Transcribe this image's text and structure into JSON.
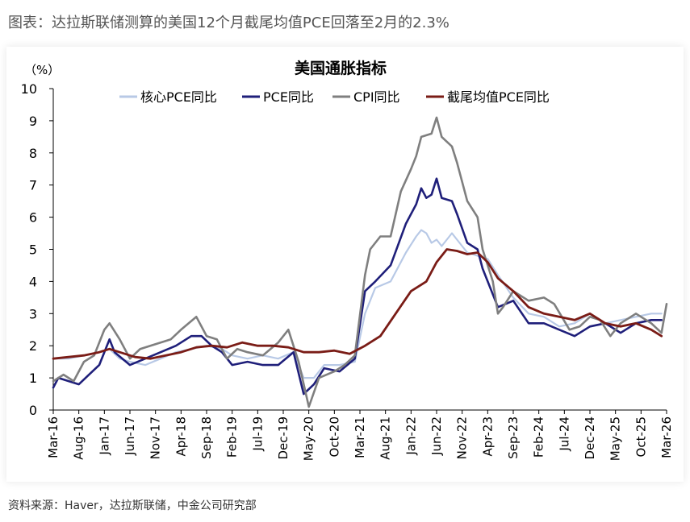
{
  "caption": "图表：达拉斯联储测算的美国12个月截尾均值PCE回落至2月的2.3%",
  "source": "资料来源：Haver，达拉斯联储，中金公司研究部",
  "chart_data": {
    "type": "line",
    "title": "美国通胀指标",
    "ylabel": "（%）",
    "ylim": [
      0,
      10
    ],
    "yticks": [
      0,
      1,
      2,
      3,
      4,
      5,
      6,
      7,
      8,
      9,
      10
    ],
    "x_start": "2016-03",
    "x_end": "2026-03",
    "x_ticks": [
      "Mar-16",
      "Aug-16",
      "Jan-17",
      "Jun-17",
      "Nov-17",
      "Apr-18",
      "Sep-18",
      "Feb-19",
      "Jul-19",
      "Dec-19",
      "May-20",
      "Oct-20",
      "Mar-21",
      "Aug-21",
      "Jan-22",
      "Jun-22",
      "Nov-22",
      "Apr-23",
      "Sep-23",
      "Feb-24",
      "Jul-24",
      "Dec-24",
      "May-25",
      "Oct-25",
      "Mar-26"
    ],
    "grid": false,
    "legend": "top",
    "series": [
      {
        "name": "核心PCE同比",
        "color": "#b8c9e6",
        "width": 2.2,
        "points": [
          [
            "2016-03",
            1.6
          ],
          [
            "2016-06",
            1.6
          ],
          [
            "2016-09",
            1.7
          ],
          [
            "2016-12",
            1.8
          ],
          [
            "2017-02",
            1.9
          ],
          [
            "2017-04",
            1.6
          ],
          [
            "2017-06",
            1.5
          ],
          [
            "2017-09",
            1.4
          ],
          [
            "2017-12",
            1.6
          ],
          [
            "2018-03",
            1.8
          ],
          [
            "2018-06",
            1.9
          ],
          [
            "2018-09",
            2.0
          ],
          [
            "2018-12",
            1.9
          ],
          [
            "2019-02",
            1.7
          ],
          [
            "2019-05",
            1.6
          ],
          [
            "2019-08",
            1.7
          ],
          [
            "2019-11",
            1.6
          ],
          [
            "2020-02",
            1.8
          ],
          [
            "2020-04",
            1.0
          ],
          [
            "2020-06",
            1.0
          ],
          [
            "2020-08",
            1.4
          ],
          [
            "2020-11",
            1.4
          ],
          [
            "2021-02",
            1.5
          ],
          [
            "2021-04",
            3.0
          ],
          [
            "2021-06",
            3.8
          ],
          [
            "2021-09",
            4.0
          ],
          [
            "2021-12",
            4.9
          ],
          [
            "2022-02",
            5.4
          ],
          [
            "2022-03",
            5.6
          ],
          [
            "2022-04",
            5.5
          ],
          [
            "2022-05",
            5.2
          ],
          [
            "2022-06",
            5.3
          ],
          [
            "2022-07",
            5.1
          ],
          [
            "2022-09",
            5.5
          ],
          [
            "2022-10",
            5.3
          ],
          [
            "2022-12",
            4.9
          ],
          [
            "2023-02",
            4.8
          ],
          [
            "2023-04",
            4.7
          ],
          [
            "2023-06",
            4.2
          ],
          [
            "2023-09",
            3.5
          ],
          [
            "2023-12",
            3.0
          ],
          [
            "2024-03",
            2.9
          ],
          [
            "2024-06",
            2.6
          ],
          [
            "2024-09",
            2.7
          ],
          [
            "2024-12",
            3.0
          ],
          [
            "2025-03",
            2.7
          ],
          [
            "2025-06",
            2.8
          ],
          [
            "2025-09",
            2.9
          ],
          [
            "2025-12",
            3.0
          ],
          [
            "2026-02",
            3.0
          ]
        ]
      },
      {
        "name": "PCE同比",
        "color": "#1f1f7a",
        "width": 2.6,
        "points": [
          [
            "2016-03",
            0.7
          ],
          [
            "2016-04",
            1.0
          ],
          [
            "2016-06",
            0.9
          ],
          [
            "2016-08",
            0.8
          ],
          [
            "2016-10",
            1.1
          ],
          [
            "2016-12",
            1.4
          ],
          [
            "2017-02",
            2.2
          ],
          [
            "2017-03",
            1.8
          ],
          [
            "2017-06",
            1.4
          ],
          [
            "2017-09",
            1.6
          ],
          [
            "2017-12",
            1.8
          ],
          [
            "2018-03",
            2.0
          ],
          [
            "2018-06",
            2.3
          ],
          [
            "2018-08",
            2.3
          ],
          [
            "2018-10",
            2.0
          ],
          [
            "2018-12",
            1.8
          ],
          [
            "2019-02",
            1.4
          ],
          [
            "2019-05",
            1.5
          ],
          [
            "2019-08",
            1.4
          ],
          [
            "2019-11",
            1.4
          ],
          [
            "2020-02",
            1.8
          ],
          [
            "2020-04",
            0.5
          ],
          [
            "2020-06",
            0.8
          ],
          [
            "2020-08",
            1.3
          ],
          [
            "2020-11",
            1.2
          ],
          [
            "2021-02",
            1.6
          ],
          [
            "2021-04",
            3.7
          ],
          [
            "2021-06",
            4.0
          ],
          [
            "2021-09",
            4.5
          ],
          [
            "2021-12",
            5.8
          ],
          [
            "2022-02",
            6.4
          ],
          [
            "2022-03",
            6.9
          ],
          [
            "2022-04",
            6.6
          ],
          [
            "2022-05",
            6.7
          ],
          [
            "2022-06",
            7.2
          ],
          [
            "2022-07",
            6.6
          ],
          [
            "2022-09",
            6.5
          ],
          [
            "2022-10",
            6.1
          ],
          [
            "2022-12",
            5.2
          ],
          [
            "2023-02",
            5.0
          ],
          [
            "2023-03",
            4.4
          ],
          [
            "2023-06",
            3.2
          ],
          [
            "2023-09",
            3.4
          ],
          [
            "2023-12",
            2.7
          ],
          [
            "2024-03",
            2.7
          ],
          [
            "2024-06",
            2.5
          ],
          [
            "2024-09",
            2.3
          ],
          [
            "2024-12",
            2.6
          ],
          [
            "2025-03",
            2.7
          ],
          [
            "2025-06",
            2.4
          ],
          [
            "2025-09",
            2.7
          ],
          [
            "2025-12",
            2.8
          ],
          [
            "2026-02",
            2.8
          ]
        ]
      },
      {
        "name": "CPI同比",
        "color": "#7f7f7f",
        "width": 2.6,
        "points": [
          [
            "2016-03",
            0.9
          ],
          [
            "2016-05",
            1.1
          ],
          [
            "2016-07",
            0.9
          ],
          [
            "2016-09",
            1.5
          ],
          [
            "2016-11",
            1.7
          ],
          [
            "2017-01",
            2.5
          ],
          [
            "2017-02",
            2.7
          ],
          [
            "2017-04",
            2.2
          ],
          [
            "2017-06",
            1.6
          ],
          [
            "2017-08",
            1.9
          ],
          [
            "2017-10",
            2.0
          ],
          [
            "2017-12",
            2.1
          ],
          [
            "2018-02",
            2.2
          ],
          [
            "2018-04",
            2.5
          ],
          [
            "2018-07",
            2.9
          ],
          [
            "2018-09",
            2.3
          ],
          [
            "2018-11",
            2.2
          ],
          [
            "2019-01",
            1.6
          ],
          [
            "2019-03",
            1.9
          ],
          [
            "2019-05",
            1.8
          ],
          [
            "2019-08",
            1.7
          ],
          [
            "2019-11",
            2.1
          ],
          [
            "2020-01",
            2.5
          ],
          [
            "2020-03",
            1.5
          ],
          [
            "2020-05",
            0.1
          ],
          [
            "2020-07",
            1.0
          ],
          [
            "2020-10",
            1.2
          ],
          [
            "2020-12",
            1.4
          ],
          [
            "2021-02",
            1.7
          ],
          [
            "2021-04",
            4.2
          ],
          [
            "2021-05",
            5.0
          ],
          [
            "2021-07",
            5.4
          ],
          [
            "2021-09",
            5.4
          ],
          [
            "2021-11",
            6.8
          ],
          [
            "2022-01",
            7.5
          ],
          [
            "2022-02",
            7.9
          ],
          [
            "2022-03",
            8.5
          ],
          [
            "2022-05",
            8.6
          ],
          [
            "2022-06",
            9.1
          ],
          [
            "2022-07",
            8.5
          ],
          [
            "2022-09",
            8.2
          ],
          [
            "2022-10",
            7.7
          ],
          [
            "2022-12",
            6.5
          ],
          [
            "2023-02",
            6.0
          ],
          [
            "2023-03",
            5.0
          ],
          [
            "2023-05",
            4.0
          ],
          [
            "2023-06",
            3.0
          ],
          [
            "2023-07",
            3.2
          ],
          [
            "2023-09",
            3.7
          ],
          [
            "2023-12",
            3.4
          ],
          [
            "2024-03",
            3.5
          ],
          [
            "2024-05",
            3.3
          ],
          [
            "2024-08",
            2.5
          ],
          [
            "2024-10",
            2.6
          ],
          [
            "2024-12",
            2.9
          ],
          [
            "2025-02",
            2.8
          ],
          [
            "2025-04",
            2.3
          ],
          [
            "2025-06",
            2.7
          ],
          [
            "2025-09",
            3.0
          ],
          [
            "2025-12",
            2.7
          ],
          [
            "2026-02",
            2.4
          ],
          [
            "2026-03",
            3.3
          ]
        ]
      },
      {
        "name": "截尾均值PCE同比",
        "color": "#7a1c16",
        "width": 2.8,
        "points": [
          [
            "2016-03",
            1.6
          ],
          [
            "2016-06",
            1.65
          ],
          [
            "2016-09",
            1.7
          ],
          [
            "2016-12",
            1.8
          ],
          [
            "2017-02",
            1.9
          ],
          [
            "2017-04",
            1.8
          ],
          [
            "2017-07",
            1.65
          ],
          [
            "2017-10",
            1.6
          ],
          [
            "2018-01",
            1.7
          ],
          [
            "2018-04",
            1.8
          ],
          [
            "2018-07",
            1.95
          ],
          [
            "2018-10",
            2.0
          ],
          [
            "2019-01",
            1.95
          ],
          [
            "2019-04",
            2.1
          ],
          [
            "2019-07",
            2.0
          ],
          [
            "2019-10",
            2.0
          ],
          [
            "2020-01",
            1.95
          ],
          [
            "2020-04",
            1.8
          ],
          [
            "2020-07",
            1.8
          ],
          [
            "2020-10",
            1.85
          ],
          [
            "2021-01",
            1.75
          ],
          [
            "2021-04",
            2.0
          ],
          [
            "2021-07",
            2.3
          ],
          [
            "2021-10",
            3.0
          ],
          [
            "2022-01",
            3.7
          ],
          [
            "2022-04",
            4.0
          ],
          [
            "2022-06",
            4.6
          ],
          [
            "2022-08",
            5.0
          ],
          [
            "2022-10",
            4.95
          ],
          [
            "2022-12",
            4.85
          ],
          [
            "2023-02",
            4.9
          ],
          [
            "2023-04",
            4.6
          ],
          [
            "2023-06",
            4.1
          ],
          [
            "2023-09",
            3.7
          ],
          [
            "2023-12",
            3.2
          ],
          [
            "2024-03",
            3.0
          ],
          [
            "2024-06",
            2.9
          ],
          [
            "2024-09",
            2.8
          ],
          [
            "2024-12",
            3.0
          ],
          [
            "2025-03",
            2.7
          ],
          [
            "2025-06",
            2.6
          ],
          [
            "2025-09",
            2.7
          ],
          [
            "2025-12",
            2.5
          ],
          [
            "2026-02",
            2.3
          ]
        ]
      }
    ]
  }
}
